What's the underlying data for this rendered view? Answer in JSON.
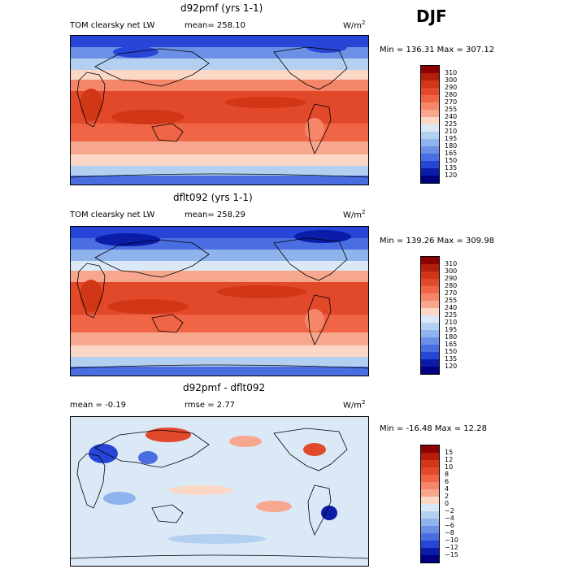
{
  "season": "DJF",
  "panels": [
    {
      "title": "d92pmf (yrs 1-1)",
      "field": "TOM clearsky net LW",
      "stat_text": "mean= 258.10",
      "stat2_text": "",
      "units": "W/m",
      "units_sup": "2",
      "minmax": "Min = 136.31 Max = 307.12",
      "levels": [
        "310",
        "300",
        "290",
        "280",
        "270",
        "255",
        "240",
        "225",
        "210",
        "195",
        "180",
        "165",
        "150",
        "135",
        "120"
      ],
      "colors": [
        "#8b0000",
        "#b41e0b",
        "#d13616",
        "#e2492a",
        "#ef6545",
        "#f5866a",
        "#f8a78f",
        "#fbd7c6",
        "#dbe9f7",
        "#b4d0f0",
        "#8fb3ec",
        "#6b90e6",
        "#4a6ee2",
        "#2746d8",
        "#0a1ca8",
        "#000080"
      ]
    },
    {
      "title": "dflt092 (yrs 1-1)",
      "field": "TOM clearsky net LW",
      "stat_text": "mean= 258.29",
      "stat2_text": "",
      "units": "W/m",
      "units_sup": "2",
      "minmax": "Min = 139.26 Max = 309.98",
      "levels": [
        "310",
        "300",
        "290",
        "280",
        "270",
        "255",
        "240",
        "225",
        "210",
        "195",
        "180",
        "165",
        "150",
        "135",
        "120"
      ],
      "colors": [
        "#8b0000",
        "#b41e0b",
        "#d13616",
        "#e2492a",
        "#ef6545",
        "#f5866a",
        "#f8a78f",
        "#fbd7c6",
        "#dbe9f7",
        "#b4d0f0",
        "#8fb3ec",
        "#6b90e6",
        "#4a6ee2",
        "#2746d8",
        "#0a1ca8",
        "#000080"
      ]
    },
    {
      "title": "d92pmf - dflt092",
      "field": "",
      "stat_text": "mean =  -0.19",
      "stat2_text": "rmse =   2.77",
      "units": "W/m",
      "units_sup": "2",
      "minmax": "Min = -16.48 Max =  12.28",
      "levels": [
        "15",
        "12",
        "10",
        "8",
        "6",
        "4",
        "2",
        "0",
        "−2",
        "−4",
        "−6",
        "−8",
        "−10",
        "−12",
        "−15"
      ],
      "colors": [
        "#8b0000",
        "#b41e0b",
        "#d13616",
        "#e2492a",
        "#ef6545",
        "#f5866a",
        "#f8a78f",
        "#fbd7c6",
        "#dbe9f7",
        "#b4d0f0",
        "#8fb3ec",
        "#6b90e6",
        "#4a6ee2",
        "#2746d8",
        "#0a1ca8",
        "#000080"
      ]
    }
  ],
  "chart_data": [
    {
      "type": "heatmap",
      "title": "d92pmf (yrs 1-1)",
      "variable": "TOM clearsky net LW",
      "units": "W/m2",
      "mean": 258.1,
      "min": 136.31,
      "max": 307.12,
      "contour_levels": [
        120,
        135,
        150,
        165,
        180,
        195,
        210,
        225,
        240,
        255,
        270,
        280,
        290,
        300,
        310
      ]
    },
    {
      "type": "heatmap",
      "title": "dflt092 (yrs 1-1)",
      "variable": "TOM clearsky net LW",
      "units": "W/m2",
      "mean": 258.29,
      "min": 139.26,
      "max": 309.98,
      "contour_levels": [
        120,
        135,
        150,
        165,
        180,
        195,
        210,
        225,
        240,
        255,
        270,
        280,
        290,
        300,
        310
      ]
    },
    {
      "type": "heatmap",
      "title": "d92pmf - dflt092",
      "units": "W/m2",
      "mean": -0.19,
      "rmse": 2.77,
      "min": -16.48,
      "max": 12.28,
      "contour_levels": [
        -15,
        -12,
        -10,
        -8,
        -6,
        -4,
        -2,
        0,
        2,
        4,
        6,
        8,
        10,
        12,
        15
      ]
    }
  ]
}
